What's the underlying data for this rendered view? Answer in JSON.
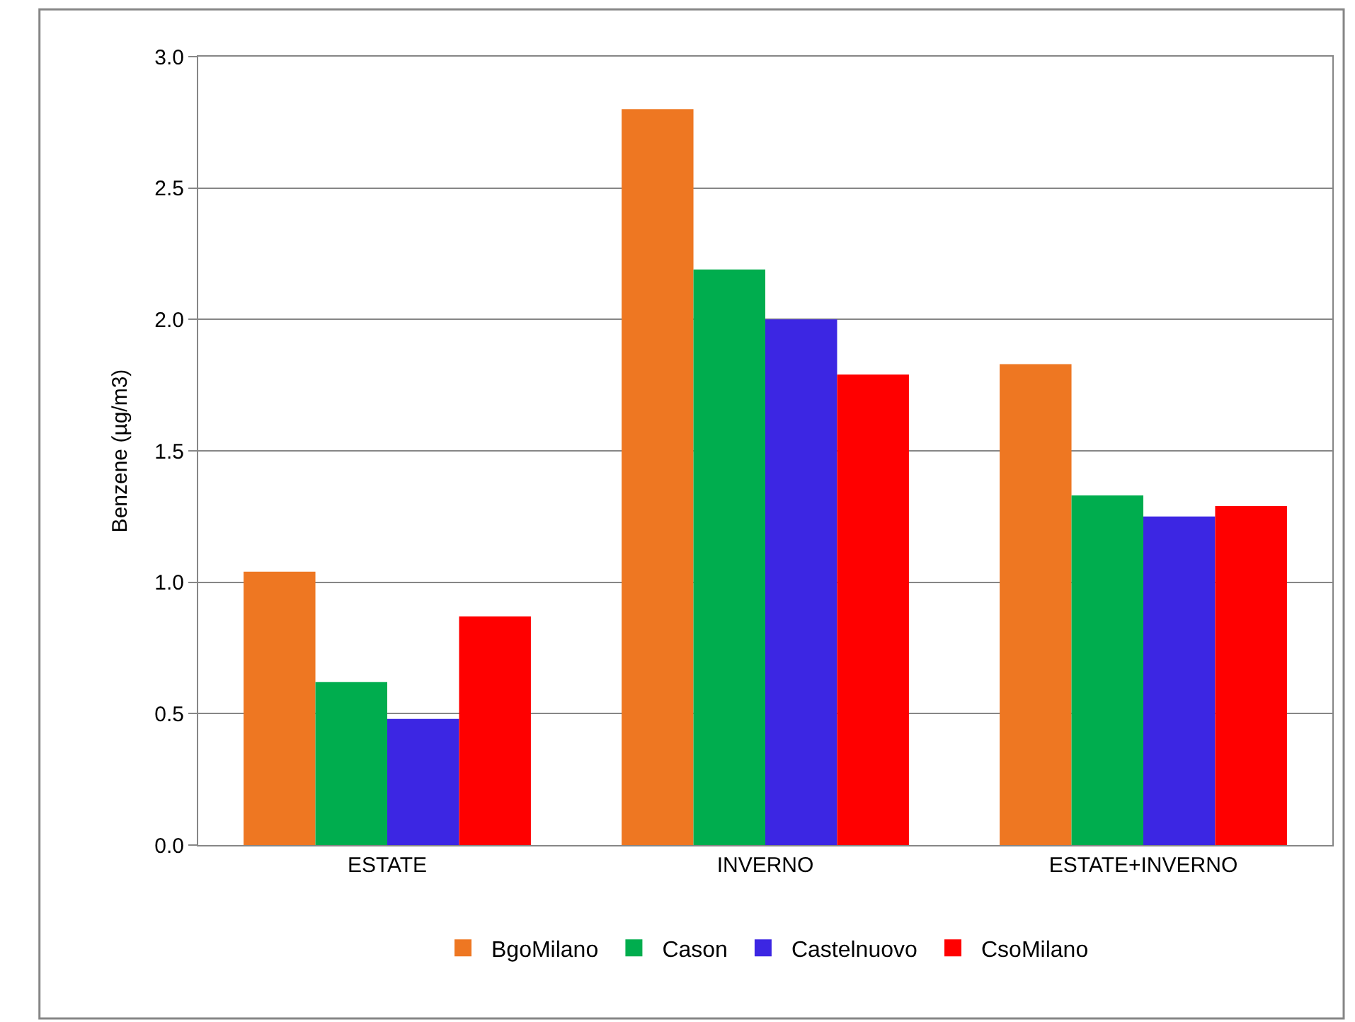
{
  "chart_data": {
    "type": "bar",
    "ylabel": "Benzene (µg/m3)",
    "categories": [
      "ESTATE",
      "INVERNO",
      "ESTATE+INVERNO"
    ],
    "series": [
      {
        "name": "BgoMilano",
        "color": "#ee7722",
        "values": [
          1.04,
          2.8,
          1.83
        ]
      },
      {
        "name": "Cason",
        "color": "#00ad4e",
        "values": [
          0.62,
          2.19,
          1.33
        ]
      },
      {
        "name": "Castelnuovo",
        "color": "#3c26e3",
        "values": [
          0.48,
          2.0,
          1.25
        ]
      },
      {
        "name": "CsoMilano",
        "color": "#ff0000",
        "values": [
          0.87,
          1.79,
          1.29
        ]
      }
    ],
    "ylim": [
      0,
      3.0
    ],
    "yticks": [
      {
        "value": 0,
        "label": "0.0"
      },
      {
        "value": 0.5,
        "label": "0.5"
      },
      {
        "value": 1.0,
        "label": "1.0"
      },
      {
        "value": 1.5,
        "label": "1.5"
      },
      {
        "value": 2.0,
        "label": "2.0"
      },
      {
        "value": 2.5,
        "label": "2.5"
      },
      {
        "value": 3.0,
        "label": "3.0"
      }
    ],
    "grid": "y",
    "legend": "bottom"
  }
}
